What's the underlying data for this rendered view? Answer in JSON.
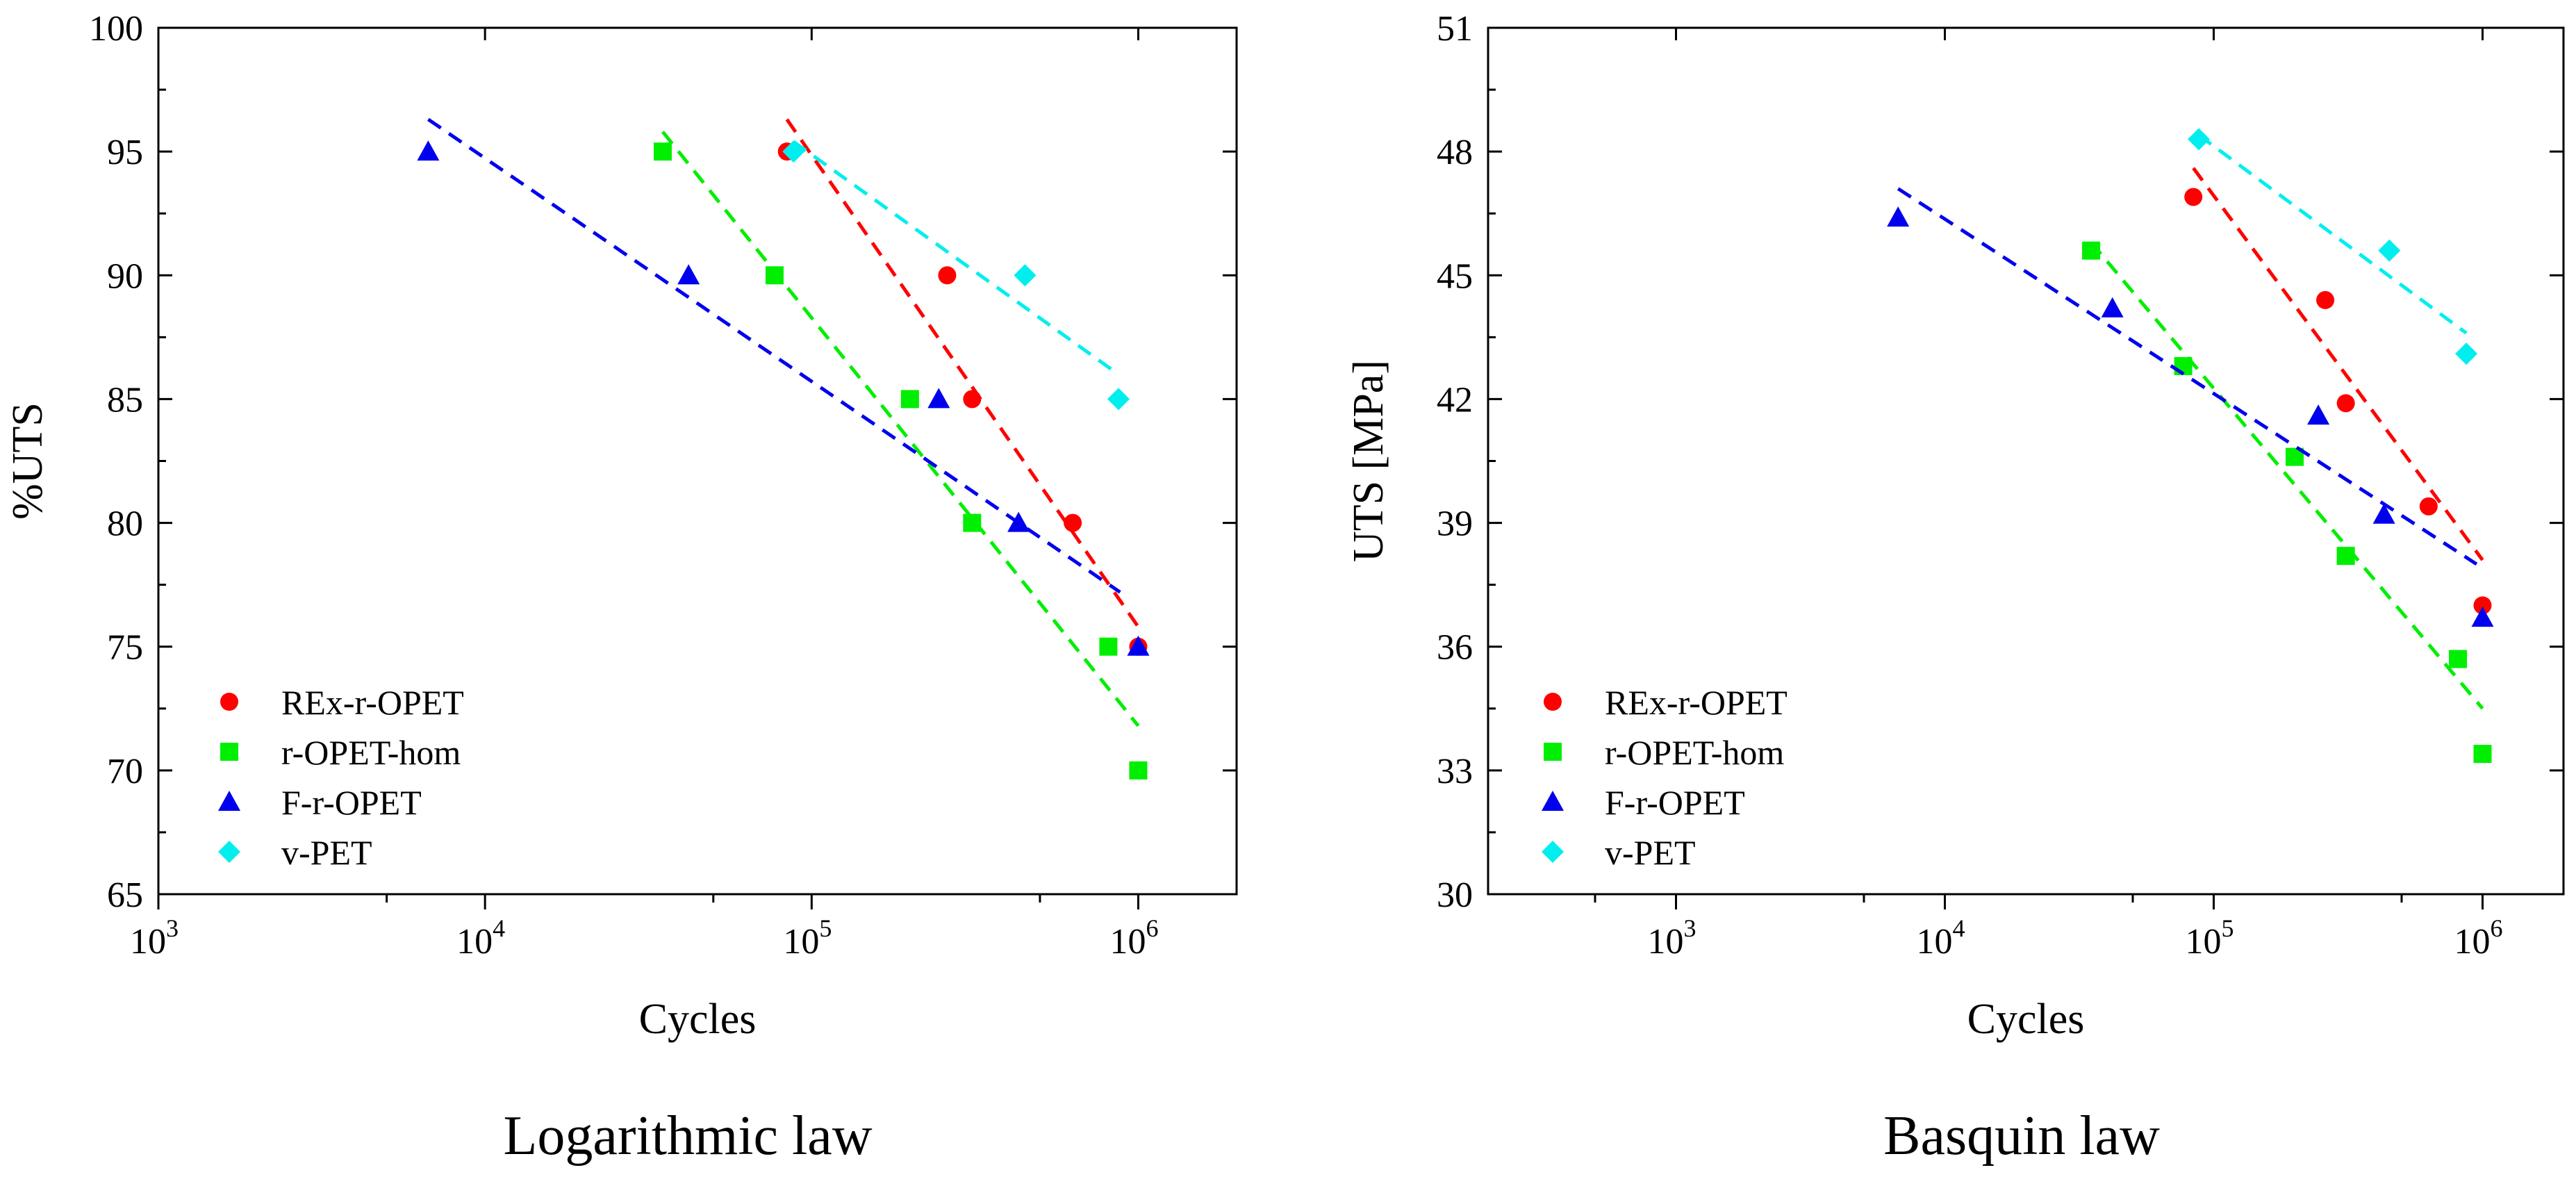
{
  "chart_data": [
    {
      "type": "scatter",
      "caption": "Logarithmic law",
      "title": "",
      "xlabel": "Cycles",
      "ylabel": "%UTS",
      "xscale": "log",
      "xlim": [
        1000,
        2000000
      ],
      "ylim": [
        65,
        100
      ],
      "x_ticks": [
        1000,
        10000,
        100000,
        1000000
      ],
      "x_tick_labels": [
        [
          "10",
          "3"
        ],
        [
          "10",
          "4"
        ],
        [
          "10",
          "5"
        ],
        [
          "10",
          "6"
        ]
      ],
      "y_ticks": [
        65,
        70,
        75,
        80,
        85,
        90,
        95,
        100
      ],
      "legend_position": "bottom-left",
      "series": [
        {
          "name": "REx-r-OPET",
          "color": "#ff0000",
          "marker": "circle",
          "x": [
            84000,
            260000,
            310000,
            630000,
            1000000
          ],
          "y": [
            95,
            90,
            85,
            80,
            75
          ],
          "fit": {
            "x": [
              84000,
              1000000
            ],
            "y": [
              96.3,
              75.8
            ]
          }
        },
        {
          "name": "r-OPET-hom",
          "color": "#00ee00",
          "marker": "square",
          "x": [
            35000,
            77000,
            200000,
            310000,
            810000,
            1000000
          ],
          "y": [
            95,
            90,
            85,
            80,
            75,
            70
          ],
          "fit": {
            "x": [
              35000,
              1000000
            ],
            "y": [
              95.8,
              71.8
            ]
          }
        },
        {
          "name": "F-r-OPET",
          "color": "#0000ee",
          "marker": "triangle",
          "x": [
            6700,
            42000,
            245000,
            430000,
            1000000
          ],
          "y": [
            95,
            90,
            85,
            80,
            75
          ],
          "fit": {
            "x": [
              6700,
              880000
            ],
            "y": [
              96.3,
              77.2
            ]
          }
        },
        {
          "name": "v-PET",
          "color": "#00eeee",
          "marker": "diamond",
          "x": [
            88000,
            450000,
            870000
          ],
          "y": [
            95,
            90,
            85
          ],
          "fit": {
            "x": [
              88000,
              870000
            ],
            "y": [
              95.4,
              86.0
            ]
          }
        }
      ]
    },
    {
      "type": "scatter",
      "caption": "Basquin law",
      "title": "",
      "xlabel": "Cycles",
      "ylabel": "UTS [MPa]",
      "xscale": "log",
      "xlim": [
        200,
        2000000
      ],
      "ylim": [
        30,
        51
      ],
      "x_ticks": [
        1000,
        10000,
        100000,
        1000000
      ],
      "x_tick_labels": [
        [
          "10",
          "3"
        ],
        [
          "10",
          "4"
        ],
        [
          "10",
          "5"
        ],
        [
          "10",
          "6"
        ]
      ],
      "y_ticks": [
        30,
        33,
        36,
        39,
        42,
        45,
        48,
        51
      ],
      "legend_position": "bottom-left",
      "series": [
        {
          "name": "REx-r-OPET",
          "color": "#ff0000",
          "marker": "circle",
          "x": [
            84000,
            260000,
            310000,
            630000,
            1000000
          ],
          "y": [
            46.9,
            44.4,
            41.9,
            39.4,
            37.0
          ],
          "fit": {
            "x": [
              84000,
              1000000
            ],
            "y": [
              47.6,
              38.1
            ]
          }
        },
        {
          "name": "r-OPET-hom",
          "color": "#00ee00",
          "marker": "square",
          "x": [
            35000,
            77000,
            200000,
            310000,
            810000,
            1000000
          ],
          "y": [
            45.6,
            42.8,
            40.6,
            38.2,
            35.7,
            33.4
          ],
          "fit": {
            "x": [
              35000,
              1000000
            ],
            "y": [
              45.8,
              34.5
            ]
          }
        },
        {
          "name": "F-r-OPET",
          "color": "#0000ee",
          "marker": "triangle",
          "x": [
            6700,
            42000,
            245000,
            430000,
            1000000
          ],
          "y": [
            46.4,
            44.2,
            41.6,
            39.2,
            36.7
          ],
          "fit": {
            "x": [
              6700,
              950000
            ],
            "y": [
              47.1,
              38.0
            ]
          }
        },
        {
          "name": "v-PET",
          "color": "#00eeee",
          "marker": "diamond",
          "x": [
            88000,
            450000,
            870000
          ],
          "y": [
            48.3,
            45.6,
            43.1
          ],
          "fit": {
            "x": [
              88000,
              870000
            ],
            "y": [
              48.4,
              43.6
            ]
          }
        }
      ]
    }
  ]
}
